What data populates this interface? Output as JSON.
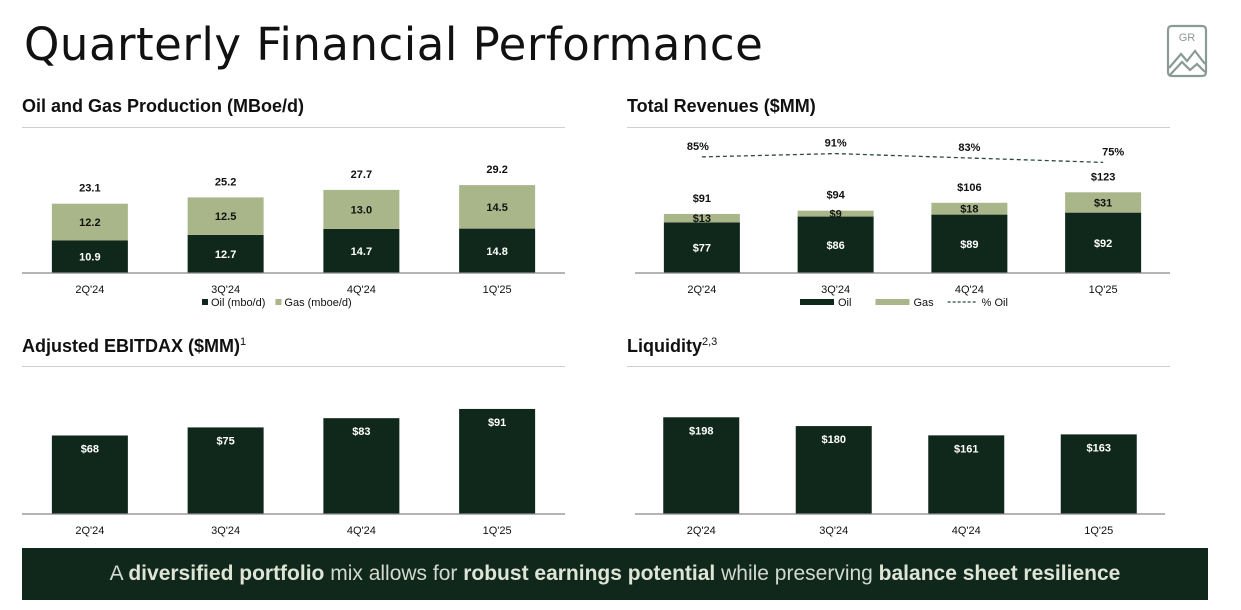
{
  "page": {
    "title": "Quarterly Financial Performance",
    "logo_text": "GR"
  },
  "colors": {
    "oil": "#10281c",
    "gas": "#a9b689",
    "axis": "#888888",
    "text": "#111111",
    "banner_bg": "#10281c"
  },
  "banner": {
    "t1": "A ",
    "b1": "diversified portfolio",
    "t2": " mix allows for ",
    "b2": "robust earnings potential",
    "t3": " while preserving ",
    "b3": "balance sheet resilience"
  },
  "chart_data": [
    {
      "id": "production",
      "type": "bar",
      "stacked": true,
      "title": "Oil and Gas Production (MBoe/d)",
      "title_sup": "",
      "categories": [
        "2Q'24",
        "3Q'24",
        "4Q'24",
        "1Q'25"
      ],
      "series": [
        {
          "name": "Oil (mbo/d)",
          "values": [
            10.9,
            12.7,
            14.7,
            14.8
          ]
        },
        {
          "name": "Gas (mboe/d)",
          "values": [
            12.2,
            12.5,
            13.0,
            14.5
          ]
        }
      ],
      "totals": [
        "23.1",
        "25.2",
        "27.7",
        "29.2"
      ],
      "series_labels": [
        [
          "10.9",
          "12.7",
          "14.7",
          "14.8"
        ],
        [
          "12.2",
          "12.5",
          "13.0",
          "14.5"
        ]
      ],
      "ylim": [
        0,
        35
      ],
      "grid": false,
      "legend": "bottom"
    },
    {
      "id": "revenues",
      "type": "bar",
      "stacked": true,
      "title": "Total Revenues ($MM)",
      "title_sup": "",
      "categories": [
        "2Q'24",
        "3Q'24",
        "4Q'24",
        "1Q'25"
      ],
      "series": [
        {
          "name": "Oil",
          "values": [
            77,
            86,
            89,
            92
          ]
        },
        {
          "name": "Gas",
          "values": [
            13,
            9,
            18,
            31
          ]
        }
      ],
      "totals": [
        "$91",
        "$94",
        "$106",
        "$123"
      ],
      "series_labels": [
        [
          "$77",
          "$86",
          "$89",
          "$92"
        ],
        [
          "$13",
          "$9",
          "$18",
          "$31"
        ]
      ],
      "line": {
        "name": "% Oil",
        "values": [
          85,
          91,
          83,
          75
        ],
        "labels": [
          "85%",
          "91%",
          "83%",
          "75%"
        ]
      },
      "ylim": [
        0,
        160
      ],
      "grid": false,
      "legend": "bottom"
    },
    {
      "id": "ebitdax",
      "type": "bar",
      "stacked": false,
      "title": "Adjusted EBITDAX ($MM)",
      "title_sup": "1",
      "categories": [
        "2Q'24",
        "3Q'24",
        "4Q'24",
        "1Q'25"
      ],
      "series": [
        {
          "values": [
            68,
            75,
            83,
            91
          ]
        }
      ],
      "series_labels": [
        [
          "$68",
          "$75",
          "$83",
          "$91"
        ]
      ],
      "ylim": [
        0,
        110
      ],
      "grid": false
    },
    {
      "id": "liquidity",
      "type": "bar",
      "stacked": false,
      "title": "Liquidity",
      "title_sup": "2,3",
      "categories": [
        "2Q'24",
        "3Q'24",
        "4Q'24",
        "1Q'25"
      ],
      "series": [
        {
          "values": [
            198,
            180,
            161,
            163
          ]
        }
      ],
      "series_labels": [
        [
          "$198",
          "$180",
          "$161",
          "$163"
        ]
      ],
      "ylim": [
        0,
        260
      ],
      "grid": false
    }
  ]
}
